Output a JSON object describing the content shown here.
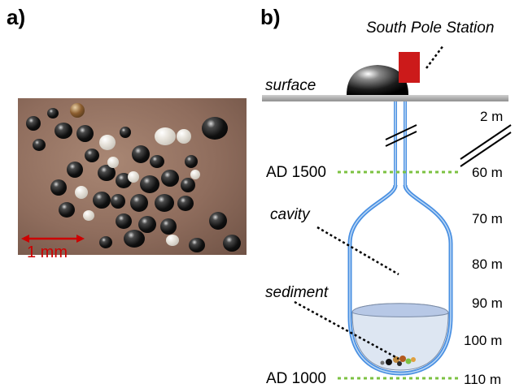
{
  "panels": {
    "a": "a)",
    "b": "b)"
  },
  "photo": {
    "scale_label": "1 mm",
    "scale_color": "#cc0000"
  },
  "diagram": {
    "station_label": "South Pole Station",
    "surface_label": "surface",
    "cavity_label": "cavity",
    "sediment_label": "sediment",
    "ad_1500_label": "AD 1500",
    "ad_1000_label": "AD 1000",
    "marker_color": "#7cc242",
    "wall_color": "#4a90e2",
    "building_color": "#cc1a1a",
    "depths": [
      "2 m",
      "60 m",
      "70 m",
      "80 m",
      "90 m",
      "100 m",
      "110 m"
    ]
  }
}
